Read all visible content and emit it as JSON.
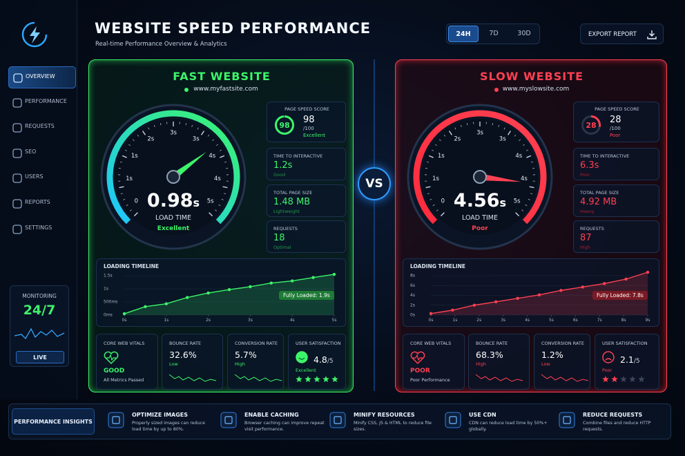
{
  "sidebar": {
    "nav": [
      "OVERVIEW",
      "PERFORMANCE",
      "REQUESTS",
      "SEO",
      "USERS",
      "REPORTS",
      "SETTINGS"
    ],
    "monitoring": {
      "label": "MONITORING",
      "value": "24/7",
      "button": "LIVE"
    }
  },
  "header": {
    "title": "WEBSITE SPEED PERFORMANCE",
    "subtitle": "Real-time Performance Overview & Analytics",
    "ranges": [
      "24H",
      "7D",
      "30D"
    ],
    "export": "EXPORT REPORT"
  },
  "vs": "VS",
  "panels": [
    {
      "title": "FAST WEBSITE",
      "url": "www.myfastsite.com",
      "gauge": {
        "ticks": [
          "0",
          "1s",
          "1s",
          "2s",
          "3s",
          "3s",
          "4s",
          "4s",
          "5s"
        ],
        "value": "0.98",
        "unit": "s",
        "label": "LOAD TIME",
        "status": "Excellent"
      },
      "metrics": {
        "score": {
          "label": "PAGE SPEED SCORE",
          "score": 98,
          "max": "/100",
          "status": "Excellent"
        },
        "items": [
          {
            "label": "TIME TO INTERACTIVE",
            "value": "1.2s",
            "status": "Good"
          },
          {
            "label": "TOTAL PAGE SIZE",
            "value": "1.48 MB",
            "status": "Lightweight"
          },
          {
            "label": "REQUESTS",
            "value": "18",
            "status": "Optimal"
          }
        ]
      },
      "timeline": {
        "title": "LOADING TIMELINE",
        "xlim": [
          0,
          5
        ],
        "ylim": [
          0,
          1.5
        ],
        "yticks": [
          {
            "value": 1.5,
            "label": "1.5s"
          },
          {
            "value": 1,
            "label": "1s"
          },
          {
            "value": 0.5,
            "label": "500ms"
          },
          {
            "value": 0,
            "label": "0ms"
          }
        ],
        "xticks": [
          {
            "value": 0,
            "label": "0s"
          },
          {
            "value": 1,
            "label": "1s"
          },
          {
            "value": 2,
            "label": "2s"
          },
          {
            "value": 3,
            "label": "3s"
          },
          {
            "value": 4,
            "label": "4s"
          },
          {
            "value": 5,
            "label": "5s"
          }
        ],
        "x": [
          0,
          0.5,
          1,
          1.5,
          2,
          2.5,
          3,
          3.5,
          4,
          4.5,
          5
        ],
        "values": [
          0.05,
          0.32,
          0.43,
          0.67,
          0.84,
          0.97,
          1.08,
          1.22,
          1.3,
          1.43,
          1.55
        ],
        "badge": "Fully Loaded: 1.9s"
      },
      "cards": [
        {
          "label": "CORE WEB VITALS",
          "value": "GOOD",
          "status": "All Metrics Passed"
        },
        {
          "label": "BOUNCE RATE",
          "value": "32.6%",
          "status": "Low"
        },
        {
          "label": "CONVERSION RATE",
          "value": "5.7%",
          "status": "High"
        },
        {
          "label": "USER SATISFACTION",
          "value": "4.8",
          "max": "/5",
          "status": "Excellent",
          "stars": 5
        }
      ]
    },
    {
      "title": "SLOW WEBSITE",
      "url": "www.myslowsite.com",
      "gauge": {
        "ticks": [
          "0",
          "1s",
          "1s",
          "2s",
          "3s",
          "3s",
          "4s",
          "4s",
          "5s"
        ],
        "value": "4.56",
        "unit": "s",
        "label": "LOAD TIME",
        "status": "Poor"
      },
      "metrics": {
        "score": {
          "label": "PAGE SPEED SCORE",
          "score": 28,
          "max": "/100",
          "status": "Poor"
        },
        "items": [
          {
            "label": "TIME TO INTERACTIVE",
            "value": "6.3s",
            "status": "Poor"
          },
          {
            "label": "TOTAL PAGE SIZE",
            "value": "4.92 MB",
            "status": "Heavy"
          },
          {
            "label": "REQUESTS",
            "value": "87",
            "status": "High"
          }
        ]
      },
      "timeline": {
        "title": "LOADING TIMELINE",
        "xlim": [
          0,
          9
        ],
        "ylim": [
          0,
          8
        ],
        "yticks": [
          {
            "value": 8,
            "label": "8s"
          },
          {
            "value": 6,
            "label": "6s"
          },
          {
            "value": 4,
            "label": "4s"
          },
          {
            "value": 2,
            "label": "2s"
          },
          {
            "value": 0,
            "label": "0s"
          }
        ],
        "xticks": [
          {
            "value": 0,
            "label": "0s"
          },
          {
            "value": 1,
            "label": "1s"
          },
          {
            "value": 2,
            "label": "2s"
          },
          {
            "value": 3,
            "label": "3s"
          },
          {
            "value": 4,
            "label": "4s"
          },
          {
            "value": 5,
            "label": "5s"
          },
          {
            "value": 6,
            "label": "6s"
          },
          {
            "value": 7,
            "label": "7s"
          },
          {
            "value": 8,
            "label": "8s"
          },
          {
            "value": 9,
            "label": "9s"
          }
        ],
        "x": [
          0,
          0.9,
          1.8,
          2.7,
          3.6,
          4.5,
          5.4,
          6.3,
          7.2,
          8.1,
          9
        ],
        "values": [
          0.3,
          1,
          2,
          2.7,
          3.4,
          4.1,
          5,
          5.7,
          6.4,
          7.3,
          8.7
        ],
        "badge": "Fully Loaded: 7.8s"
      },
      "cards": [
        {
          "label": "CORE WEB VITALS",
          "value": "POOR",
          "status": "Poor Performance"
        },
        {
          "label": "BOUNCE RATE",
          "value": "68.3%",
          "status": "High"
        },
        {
          "label": "CONVERSION RATE",
          "value": "1.2%",
          "status": "Low"
        },
        {
          "label": "USER SATISFACTION",
          "value": "2.1",
          "max": "/5",
          "status": "Poor",
          "stars": 2
        }
      ]
    }
  ],
  "insights": {
    "title": "PERFORMANCE INSIGHTS",
    "items": [
      {
        "title": "OPTIMIZE IMAGES",
        "text": "Properly sized images can reduce load time by up to 80%."
      },
      {
        "title": "ENABLE CACHING",
        "text": "Browser caching can improve repeat visit performance."
      },
      {
        "title": "MINIFY RESOURCES",
        "text": "Minify CSS, JS & HTML to reduce file sizes."
      },
      {
        "title": "USE CDN",
        "text": "CDN can reduce load time by 50%+ globally."
      },
      {
        "title": "REDUCE REQUESTS",
        "text": "Combine files and reduce HTTP requests."
      }
    ]
  }
}
